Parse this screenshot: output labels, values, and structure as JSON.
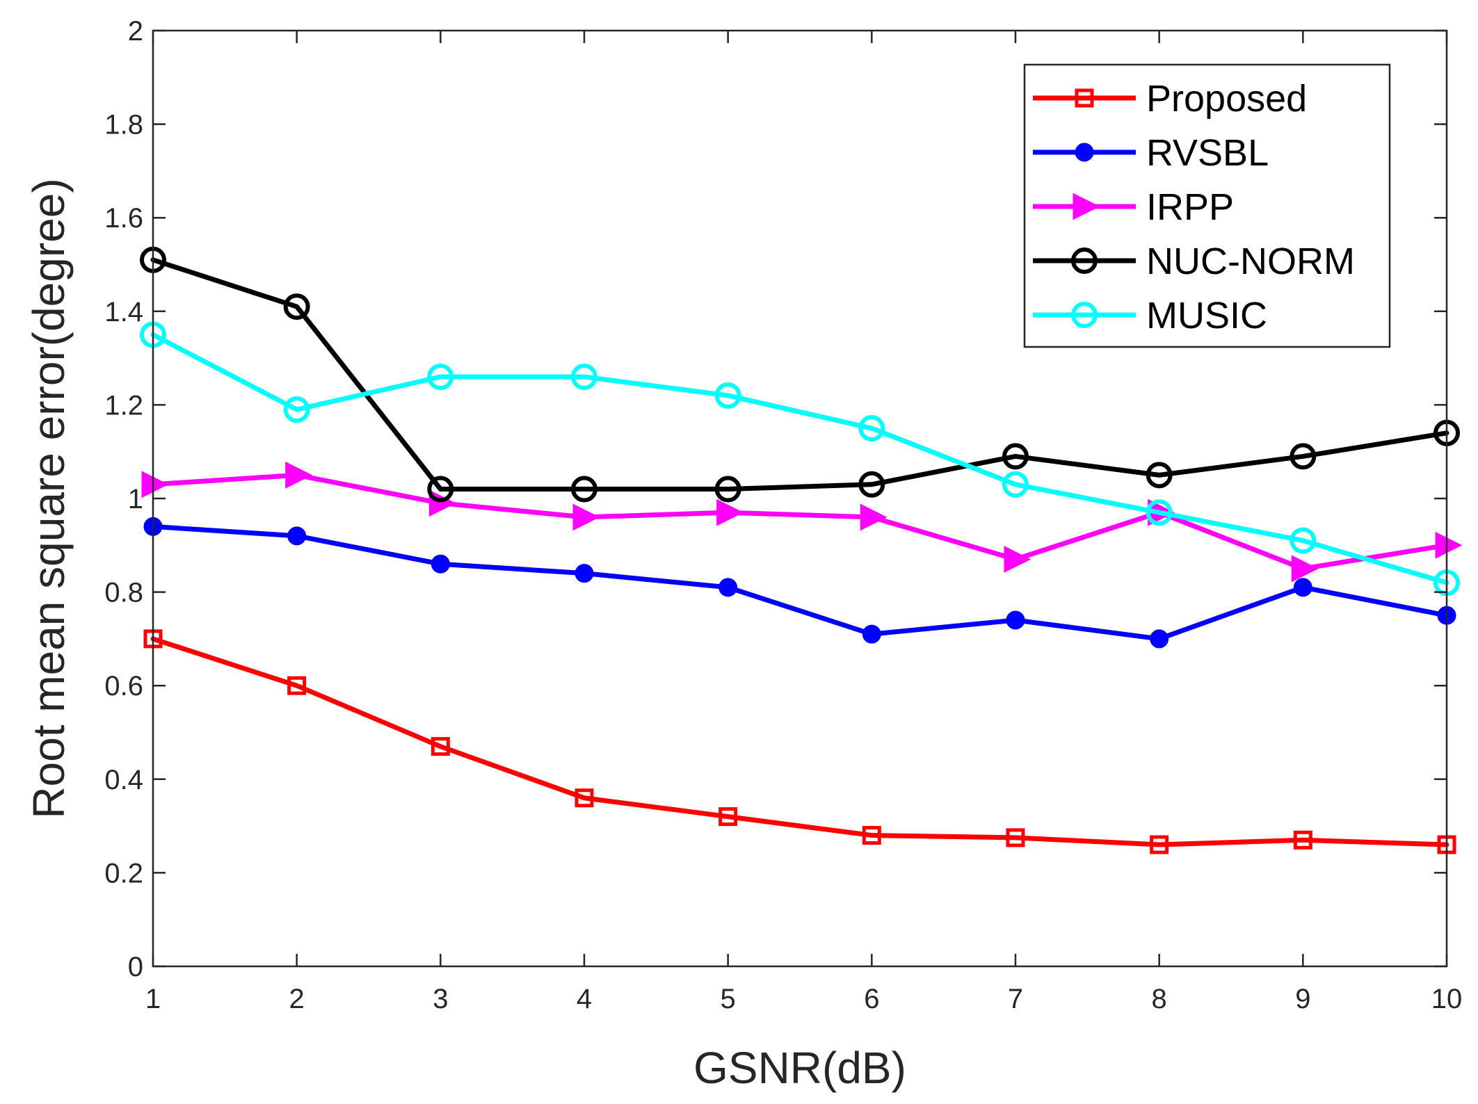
{
  "chart_data": {
    "type": "line",
    "title": "",
    "xlabel": "GSNR(dB)",
    "ylabel": "Root mean square error(degree)",
    "x": [
      1,
      2,
      3,
      4,
      5,
      6,
      7,
      8,
      9,
      10
    ],
    "xlim": [
      1,
      10
    ],
    "ylim": [
      0,
      2
    ],
    "xticks": [
      1,
      2,
      3,
      4,
      5,
      6,
      7,
      8,
      9,
      10
    ],
    "yticks": [
      0,
      0.2,
      0.4,
      0.6,
      0.8,
      1,
      1.2,
      1.4,
      1.6,
      1.8,
      2
    ],
    "xtick_labels": [
      "1",
      "2",
      "3",
      "4",
      "5",
      "6",
      "7",
      "8",
      "9",
      "10"
    ],
    "ytick_labels": [
      "0",
      "0.2",
      "0.4",
      "0.6",
      "0.8",
      "1",
      "1.2",
      "1.4",
      "1.6",
      "1.8",
      "2"
    ],
    "grid": false,
    "legend_position": "top-right",
    "series": [
      {
        "name": "Proposed",
        "color": "#ff0000",
        "marker": "square",
        "values": [
          0.7,
          0.6,
          0.47,
          0.36,
          0.32,
          0.28,
          0.275,
          0.26,
          0.27,
          0.26
        ]
      },
      {
        "name": "RVSBL",
        "color": "#0000ff",
        "marker": "filled-circle",
        "values": [
          0.94,
          0.92,
          0.86,
          0.84,
          0.81,
          0.71,
          0.74,
          0.7,
          0.81,
          0.75
        ]
      },
      {
        "name": "IRPP",
        "color": "#ff00ff",
        "marker": "triangle-right",
        "values": [
          1.03,
          1.05,
          0.99,
          0.96,
          0.97,
          0.96,
          0.87,
          0.97,
          0.85,
          0.9
        ]
      },
      {
        "name": "NUC-NORM",
        "color": "#000000",
        "marker": "open-circle",
        "values": [
          1.51,
          1.41,
          1.02,
          1.02,
          1.02,
          1.03,
          1.09,
          1.05,
          1.09,
          1.14
        ]
      },
      {
        "name": "MUSIC",
        "color": "#00ffff",
        "marker": "open-circle",
        "values": [
          1.35,
          1.19,
          1.26,
          1.26,
          1.22,
          1.15,
          1.03,
          0.97,
          0.91,
          0.82
        ]
      }
    ]
  }
}
